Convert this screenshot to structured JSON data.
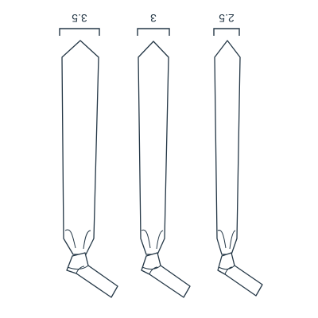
{
  "ties": [
    {
      "width_label": "3.5"
    },
    {
      "width_label": "3"
    },
    {
      "width_label": "2.5"
    }
  ],
  "colors": {
    "line": "#243746",
    "background": "#ffffff"
  }
}
